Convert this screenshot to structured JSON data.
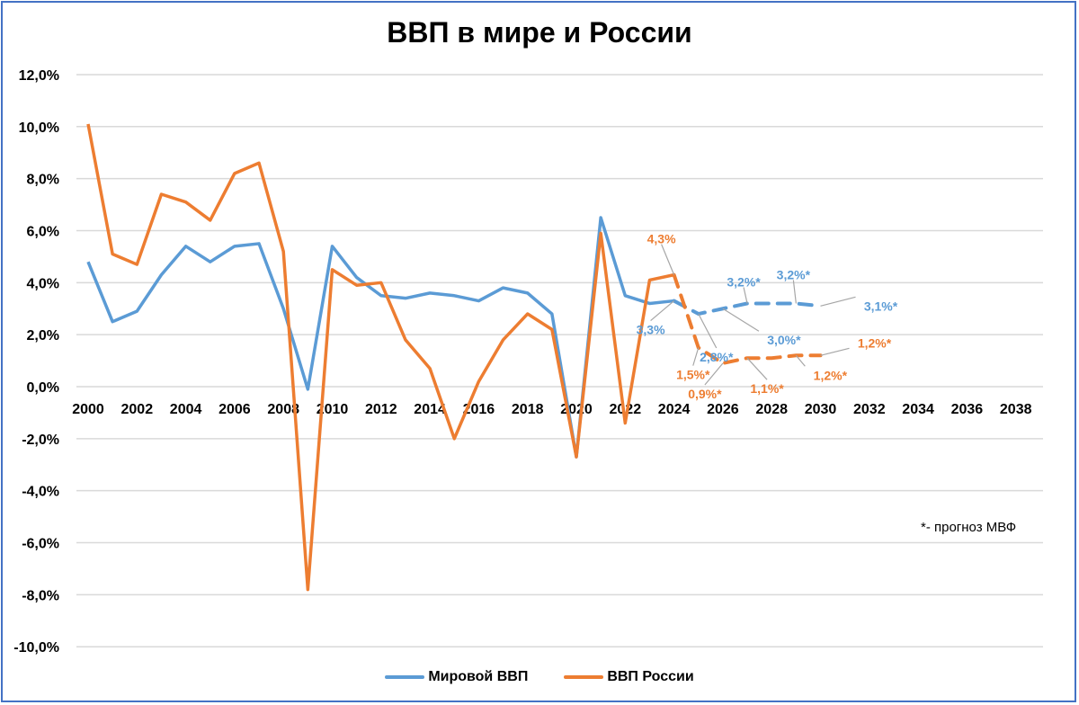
{
  "title": "ВВП в мире и России",
  "note": "*- прогноз МВФ",
  "legend": [
    {
      "label": "Мировой ВВП",
      "color": "#5b9bd5"
    },
    {
      "label": "ВВП России",
      "color": "#ed7d31"
    }
  ],
  "y_ticks": [
    "12,0%",
    "10,0%",
    "8,0%",
    "6,0%",
    "4,0%",
    "2,0%",
    "0,0%",
    "-2,0%",
    "-4,0%",
    "-6,0%",
    "-8,0%",
    "-10,0%"
  ],
  "x_ticks": [
    "2000",
    "2002",
    "2004",
    "2006",
    "2008",
    "2010",
    "2012",
    "2014",
    "2016",
    "2018",
    "2020",
    "2022",
    "2024",
    "2026",
    "2028",
    "2030",
    "2032",
    "2034",
    "2036",
    "2038"
  ],
  "chart_data": {
    "type": "line",
    "title": "ВВП в мире и России",
    "xlabel": "",
    "ylabel": "",
    "ylim": [
      -10,
      12
    ],
    "xlim": [
      2000,
      2038
    ],
    "grid": true,
    "legend_position": "bottom",
    "x": [
      2000,
      2001,
      2002,
      2003,
      2004,
      2005,
      2006,
      2007,
      2008,
      2009,
      2010,
      2011,
      2012,
      2013,
      2014,
      2015,
      2016,
      2017,
      2018,
      2019,
      2020,
      2021,
      2022,
      2023,
      2024,
      2025,
      2026,
      2027,
      2028,
      2029,
      2030
    ],
    "series": [
      {
        "name": "Мировой ВВП",
        "color": "#5b9bd5",
        "actual_x": [
          2000,
          2001,
          2002,
          2003,
          2004,
          2005,
          2006,
          2007,
          2008,
          2009,
          2010,
          2011,
          2012,
          2013,
          2014,
          2015,
          2016,
          2017,
          2018,
          2019,
          2020,
          2021,
          2022,
          2023,
          2024
        ],
        "actual": [
          4.8,
          2.5,
          2.9,
          4.3,
          5.4,
          4.8,
          5.4,
          5.5,
          3.0,
          -0.1,
          5.4,
          4.2,
          3.5,
          3.4,
          3.6,
          3.5,
          3.3,
          3.8,
          3.6,
          2.8,
          -2.7,
          6.5,
          3.5,
          3.2,
          3.3
        ],
        "forecast_x": [
          2024,
          2025,
          2026,
          2027,
          2028,
          2029,
          2030
        ],
        "forecast": [
          3.3,
          2.8,
          3.0,
          3.2,
          3.2,
          3.2,
          3.1
        ]
      },
      {
        "name": "ВВП России",
        "color": "#ed7d31",
        "actual_x": [
          2000,
          2001,
          2002,
          2003,
          2004,
          2005,
          2006,
          2007,
          2008,
          2009,
          2010,
          2011,
          2012,
          2013,
          2014,
          2015,
          2016,
          2017,
          2018,
          2019,
          2020,
          2021,
          2022,
          2023,
          2024
        ],
        "actual": [
          10.1,
          5.1,
          4.7,
          7.4,
          7.1,
          6.4,
          8.2,
          8.6,
          5.2,
          -7.8,
          4.5,
          3.9,
          4.0,
          1.8,
          0.7,
          -2.0,
          0.2,
          1.8,
          2.8,
          2.2,
          -2.7,
          5.9,
          -1.4,
          4.1,
          4.3
        ],
        "forecast_x": [
          2024,
          2025,
          2026,
          2027,
          2028,
          2029,
          2030
        ],
        "forecast": [
          4.3,
          1.5,
          0.9,
          1.1,
          1.1,
          1.2,
          1.2
        ]
      }
    ],
    "annotations": [
      {
        "series": "Мировой ВВП",
        "x": 2024,
        "text": "3,3%"
      },
      {
        "series": "Мировой ВВП",
        "x": 2025,
        "text": "2,8%*"
      },
      {
        "series": "Мировой ВВП",
        "x": 2026,
        "text": "3,0%*"
      },
      {
        "series": "Мировой ВВП",
        "x": 2027,
        "text": "3,2%*"
      },
      {
        "series": "Мировой ВВП",
        "x": 2029,
        "text": "3,2%*"
      },
      {
        "series": "Мировой ВВП",
        "x": 2030,
        "text": "3,1%*"
      },
      {
        "series": "ВВП России",
        "x": 2024,
        "text": "4,3%"
      },
      {
        "series": "ВВП России",
        "x": 2025,
        "text": "1,5%*"
      },
      {
        "series": "ВВП России",
        "x": 2026,
        "text": "0,9%*"
      },
      {
        "series": "ВВП России",
        "x": 2027,
        "text": "1,1%*"
      },
      {
        "series": "ВВП России",
        "x": 2029,
        "text": "1,2%*"
      },
      {
        "series": "ВВП России",
        "x": 2030,
        "text": "1,2%*"
      }
    ],
    "note": "*- прогноз МВФ"
  }
}
